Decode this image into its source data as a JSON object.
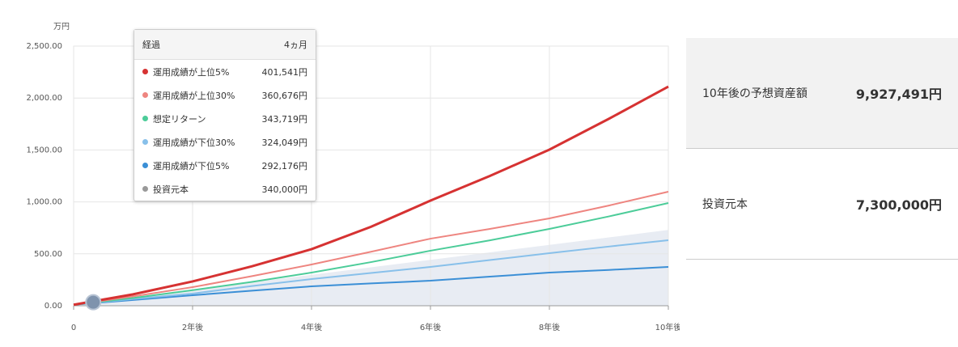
{
  "chart_data": {
    "type": "line",
    "y_label": "万円",
    "x": [
      0,
      1,
      2,
      3,
      4,
      5,
      6,
      7,
      8,
      9,
      10
    ],
    "xlim": [
      0,
      10
    ],
    "xticks": [
      0,
      {
        "value": 2,
        "label": "2年後"
      },
      {
        "value": 4,
        "label": "4年後"
      },
      {
        "value": 6,
        "label": "6年後"
      },
      {
        "value": 8,
        "label": "8年後"
      },
      {
        "value": 10,
        "label": "10年後"
      }
    ],
    "ylim": [
      0,
      2500
    ],
    "yticks": [
      {
        "value": 0,
        "label": "0.00"
      },
      {
        "value": 500,
        "label": "500.00"
      },
      {
        "value": 1000,
        "label": "1,000.00"
      },
      {
        "value": 1500,
        "label": "1,500.00"
      },
      {
        "value": 2000,
        "label": "2,000.00"
      },
      {
        "value": 2500,
        "label": "2,500.00"
      }
    ],
    "grid": true,
    "series": [
      {
        "name": "運用成績が上位5%",
        "color": "#d63232",
        "values": [
          10,
          110,
          234,
          380,
          545,
          760,
          1012,
          1250,
          1503,
          1800,
          2110
        ]
      },
      {
        "name": "運用成績が上位30%",
        "color": "#ee8580",
        "values": [
          10,
          90,
          179,
          285,
          397,
          520,
          646,
          740,
          841,
          965,
          1098
        ]
      },
      {
        "name": "想定リターン",
        "color": "#4ccc99",
        "values": [
          10,
          75,
          150,
          230,
          319,
          420,
          530,
          630,
          740,
          860,
          989
        ]
      },
      {
        "name": "運用成績が下位30%",
        "color": "#88c0ea",
        "values": [
          10,
          65,
          117,
          190,
          257,
          315,
          374,
          440,
          506,
          570,
          631
        ]
      },
      {
        "name": "運用成績が下位5%",
        "color": "#3b8fd6",
        "values": [
          10,
          55,
          101,
          145,
          187,
          215,
          241,
          280,
          319,
          345,
          374
        ]
      },
      {
        "name": "投資元本",
        "color": "#999999",
        "area": true,
        "area_color": "#e8ecf3",
        "values": [
          10,
          82,
          154,
          226,
          298,
          370,
          442,
          514,
          586,
          658,
          730
        ]
      }
    ],
    "tooltip": {
      "x": 0.33,
      "y": 34,
      "header": "経過",
      "header_value": "4ヵ月",
      "values": [
        "401,541円",
        "360,676円",
        "343,719円",
        "324,049円",
        "292,176円",
        "340,000円"
      ]
    }
  },
  "summary": [
    {
      "label": "10年後の予想資産額",
      "value": "9,927,491円"
    },
    {
      "label": "投資元本",
      "value": "7,300,000円"
    }
  ]
}
